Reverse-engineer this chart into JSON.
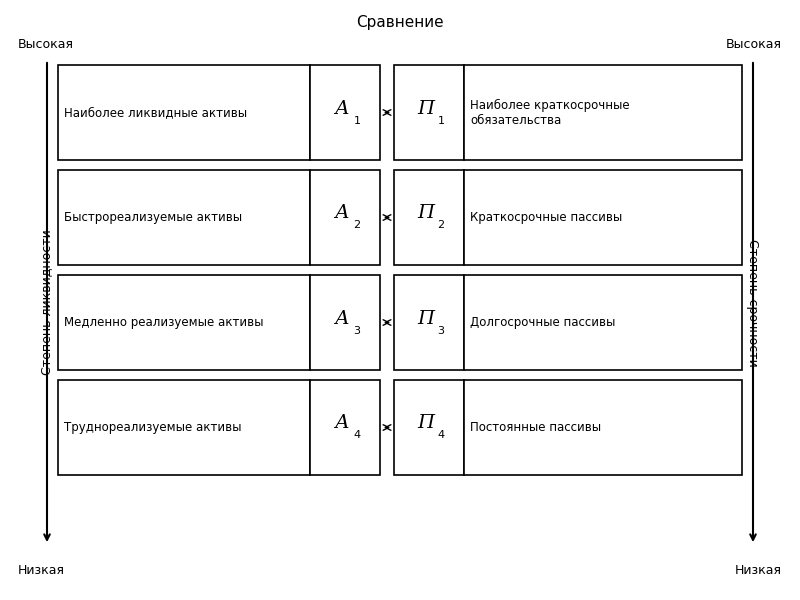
{
  "title": "Сравнение",
  "bg_color": "#ffffff",
  "text_color": "#000000",
  "left_axis_label": "Степень ликвидности",
  "right_axis_label": "Степень срочности",
  "top_left_label": "Высокая",
  "top_right_label": "Высокая",
  "bottom_left_label": "Низкая",
  "bottom_right_label": "Низкая",
  "rows": [
    {
      "left_text": "Наиболее ликвидные активы",
      "left_symbol": "А",
      "left_subscript": "1",
      "right_symbol": "П",
      "right_subscript": "1",
      "right_text": "Наиболее краткосрочные\nобязательства"
    },
    {
      "left_text": "Быстрореализуемые активы",
      "left_symbol": "А",
      "left_subscript": "2",
      "right_symbol": "П",
      "right_subscript": "2",
      "right_text": "Краткосрочные пассивы"
    },
    {
      "left_text": "Медленно реализуемые активы",
      "left_symbol": "А",
      "left_subscript": "3",
      "right_symbol": "П",
      "right_subscript": "3",
      "right_text": "Долгосрочные пассивы"
    },
    {
      "left_text": "Труднореализуемые активы",
      "left_symbol": "А",
      "left_subscript": "4",
      "right_symbol": "П",
      "right_subscript": "4",
      "right_text": "Постоянные пассивы"
    }
  ],
  "label_fontsize": 8.5,
  "symbol_fontsize": 14,
  "subscript_fontsize": 8
}
